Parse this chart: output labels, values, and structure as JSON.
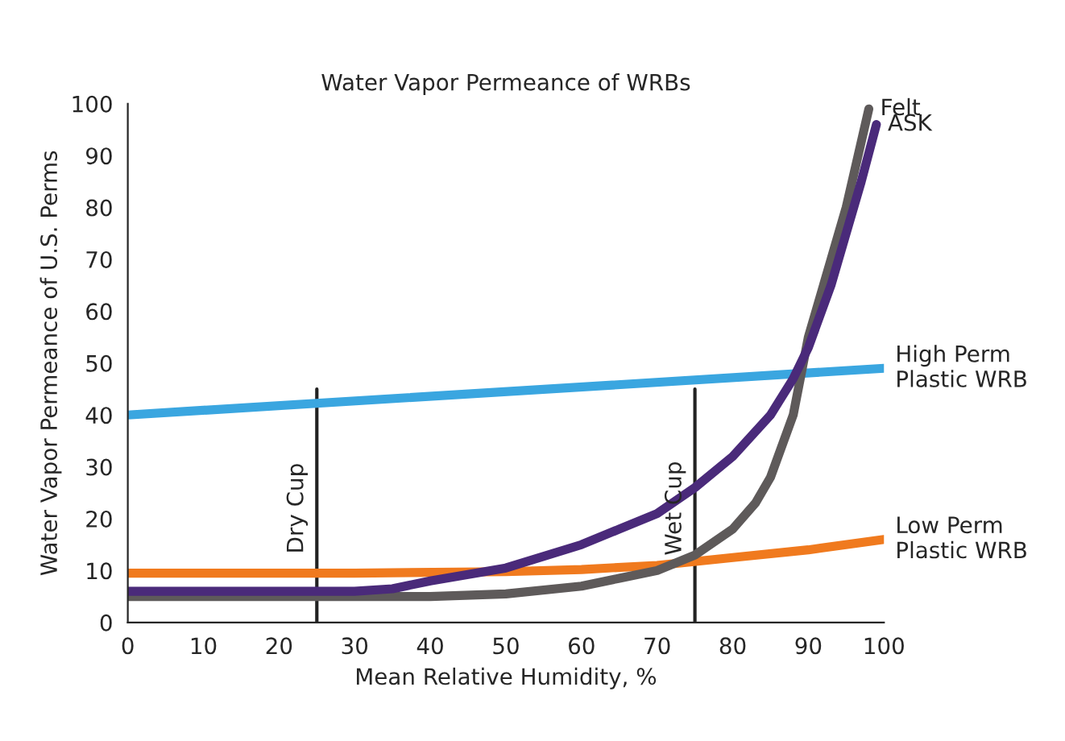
{
  "chart_data": {
    "type": "line",
    "title": "Water Vapor Permeance of WRBs",
    "xlabel": "Mean Relative Humidity, %",
    "ylabel": "Water Vapor Permeance of U.S. Perms",
    "xlim": [
      0,
      100
    ],
    "ylim": [
      0,
      100
    ],
    "xticks": [
      0,
      10,
      20,
      30,
      40,
      50,
      60,
      70,
      80,
      90,
      100
    ],
    "yticks": [
      0,
      10,
      20,
      30,
      40,
      50,
      60,
      70,
      80,
      90,
      100
    ],
    "grid": false,
    "legend": false,
    "series": [
      {
        "name": "High Perm\nPlastic WRB",
        "color": "#3aa6e0",
        "x": [
          0,
          100
        ],
        "values": [
          40,
          49
        ]
      },
      {
        "name": "Low Perm\nPlastic WRB",
        "color": "#f07a1e",
        "x": [
          0,
          30,
          50,
          60,
          70,
          80,
          90,
          100
        ],
        "values": [
          9.5,
          9.5,
          9.8,
          10.2,
          11,
          12.5,
          14,
          16
        ]
      },
      {
        "name": "Felt",
        "color": "#5e5a5a",
        "x": [
          0,
          30,
          40,
          50,
          60,
          65,
          70,
          75,
          80,
          83,
          85,
          88,
          90,
          93,
          95,
          98
        ],
        "values": [
          5,
          5,
          5,
          5.5,
          7,
          8.5,
          10,
          13,
          18,
          23,
          28,
          40,
          55,
          70,
          80,
          99
        ]
      },
      {
        "name": "ASK",
        "color": "#4a2a7a",
        "x": [
          0,
          30,
          35,
          40,
          50,
          60,
          65,
          70,
          75,
          80,
          85,
          88,
          90,
          93,
          95,
          97,
          99
        ],
        "values": [
          6,
          6,
          6.5,
          8,
          10.5,
          15,
          18,
          21,
          26,
          32,
          40,
          47,
          53,
          65,
          75,
          85,
          96
        ]
      }
    ],
    "ref_lines": [
      {
        "axis": "x",
        "value": 25,
        "label": "Dry Cup",
        "color": "#222222"
      },
      {
        "axis": "x",
        "value": 75,
        "label": "Wet Cup",
        "color": "#222222"
      }
    ]
  }
}
